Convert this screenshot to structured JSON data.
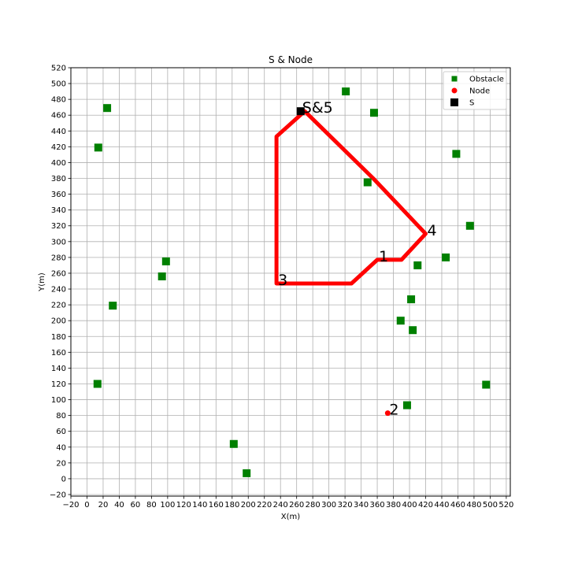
{
  "chart_data": {
    "type": "scatter",
    "title": "S & Node",
    "xlabel": "X(m)",
    "ylabel": "Y(m)",
    "xlim": [
      -20,
      525
    ],
    "ylim": [
      -22,
      520
    ],
    "xticks": [
      -20,
      0,
      20,
      40,
      60,
      80,
      100,
      120,
      140,
      160,
      180,
      200,
      220,
      240,
      260,
      280,
      300,
      320,
      340,
      360,
      380,
      400,
      420,
      440,
      460,
      480,
      500,
      520
    ],
    "yticks": [
      -20,
      0,
      20,
      40,
      60,
      80,
      100,
      120,
      140,
      160,
      180,
      200,
      220,
      240,
      260,
      280,
      300,
      320,
      340,
      360,
      380,
      400,
      420,
      440,
      460,
      480,
      500,
      520
    ],
    "grid": true,
    "legend_position": "top-right",
    "legend": [
      {
        "label": "Obstacle",
        "marker": "square",
        "color": "#008000"
      },
      {
        "label": "Node",
        "marker": "circle",
        "color": "#ff0000"
      },
      {
        "label": "S",
        "marker": "square",
        "color": "#000000"
      }
    ],
    "series": [
      {
        "name": "Obstacle",
        "marker": "square",
        "color": "#008000",
        "points": [
          {
            "x": 25,
            "y": 469
          },
          {
            "x": 14,
            "y": 419
          },
          {
            "x": 321,
            "y": 490
          },
          {
            "x": 356,
            "y": 463
          },
          {
            "x": 458,
            "y": 411
          },
          {
            "x": 348,
            "y": 375
          },
          {
            "x": 475,
            "y": 320
          },
          {
            "x": 445,
            "y": 280
          },
          {
            "x": 410,
            "y": 270
          },
          {
            "x": 98,
            "y": 275
          },
          {
            "x": 93,
            "y": 256
          },
          {
            "x": 402,
            "y": 227
          },
          {
            "x": 32,
            "y": 219
          },
          {
            "x": 389,
            "y": 200
          },
          {
            "x": 404,
            "y": 188
          },
          {
            "x": 13,
            "y": 120
          },
          {
            "x": 495,
            "y": 119
          },
          {
            "x": 397,
            "y": 93
          },
          {
            "x": 182,
            "y": 44
          },
          {
            "x": 198,
            "y": 7
          }
        ]
      },
      {
        "name": "Node",
        "marker": "circle",
        "color": "#ff0000",
        "points": [
          {
            "x": 373,
            "y": 83,
            "label": "2"
          }
        ]
      },
      {
        "name": "S",
        "marker": "square",
        "color": "#000000",
        "points": [
          {
            "x": 265,
            "y": 465,
            "label": "S&5"
          }
        ]
      }
    ],
    "path": {
      "color": "#ff0000",
      "points": [
        {
          "x": 270,
          "y": 465
        },
        {
          "x": 355,
          "y": 380
        },
        {
          "x": 420,
          "y": 310
        },
        {
          "x": 390,
          "y": 277
        },
        {
          "x": 360,
          "y": 277
        },
        {
          "x": 328,
          "y": 247
        },
        {
          "x": 235,
          "y": 247
        },
        {
          "x": 235,
          "y": 433
        },
        {
          "x": 270,
          "y": 465
        }
      ]
    },
    "annotations": [
      {
        "text": "S&5",
        "x": 265,
        "y": 465
      },
      {
        "text": "1",
        "x": 360,
        "y": 277
      },
      {
        "text": "2",
        "x": 373,
        "y": 83
      },
      {
        "text": "3",
        "x": 235,
        "y": 247
      },
      {
        "text": "4",
        "x": 420,
        "y": 310
      }
    ]
  }
}
